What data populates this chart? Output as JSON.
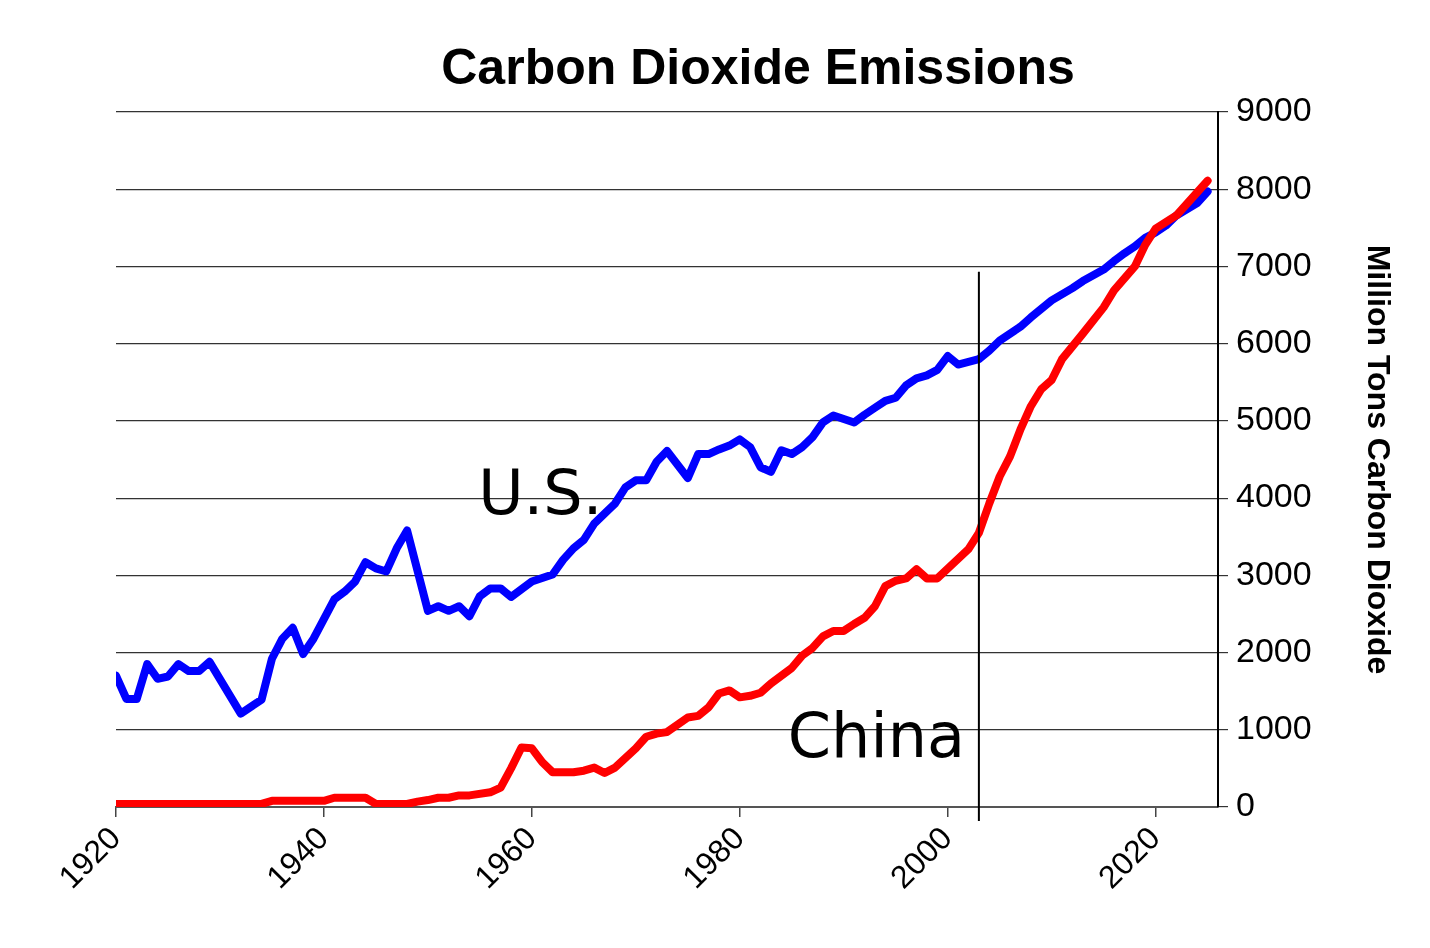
{
  "chart_data": {
    "type": "line",
    "title": "Carbon Dioxide Emissions",
    "ylabel": "Million Tons Carbon Dioxide",
    "xlim": [
      1920,
      2026
    ],
    "xticks": [
      1920,
      1940,
      1960,
      1980,
      2000,
      2020
    ],
    "ylim": [
      0,
      9000
    ],
    "yticks": [
      0,
      1000,
      2000,
      3000,
      4000,
      5000,
      6000,
      7000,
      8000,
      9000
    ],
    "grid": "y",
    "legend": false,
    "marker": "none",
    "line_style": "solid",
    "ref_lines": [
      {
        "axis": "x",
        "value": 2003,
        "color": "#000000"
      }
    ],
    "series": [
      {
        "name": "U.S.",
        "color": "#0000ff",
        "x": [
          1920,
          1921,
          1922,
          1923,
          1924,
          1925,
          1926,
          1927,
          1928,
          1929,
          1932,
          1934,
          1935,
          1936,
          1937,
          1938,
          1939,
          1941,
          1942,
          1943,
          1944,
          1945,
          1946,
          1947,
          1948,
          1950,
          1951,
          1952,
          1953,
          1954,
          1955,
          1956,
          1957,
          1958,
          1959,
          1960,
          1962,
          1963,
          1964,
          1965,
          1966,
          1968,
          1969,
          1970,
          1971,
          1972,
          1973,
          1975,
          1976,
          1977,
          1978,
          1979,
          1980,
          1981,
          1982,
          1983,
          1984,
          1985,
          1986,
          1987,
          1988,
          1989,
          1991,
          1992,
          1993,
          1994,
          1995,
          1996,
          1997,
          1998,
          1999,
          2000,
          2001,
          2003,
          2004,
          2005,
          2007,
          2008,
          2010,
          2012,
          2013,
          2015,
          2016,
          2017,
          2018,
          2019,
          2020,
          2021,
          2022,
          2024,
          2025
        ],
        "values": [
          1700,
          1400,
          1400,
          1850,
          1660,
          1690,
          1850,
          1760,
          1760,
          1880,
          1210,
          1390,
          1920,
          2180,
          2320,
          1980,
          2180,
          2690,
          2790,
          2920,
          3170,
          3090,
          3050,
          3350,
          3580,
          2540,
          2600,
          2540,
          2600,
          2470,
          2730,
          2830,
          2830,
          2720,
          2820,
          2920,
          3010,
          3200,
          3350,
          3460,
          3670,
          3930,
          4140,
          4230,
          4230,
          4470,
          4610,
          4260,
          4570,
          4570,
          4630,
          4680,
          4760,
          4660,
          4400,
          4340,
          4620,
          4570,
          4660,
          4790,
          4980,
          5070,
          4980,
          5080,
          5170,
          5260,
          5300,
          5460,
          5550,
          5590,
          5660,
          5840,
          5730,
          5800,
          5910,
          6040,
          6220,
          6340,
          6560,
          6720,
          6810,
          6960,
          7070,
          7170,
          7260,
          7370,
          7440,
          7530,
          7660,
          7820,
          7970
        ]
      },
      {
        "name": "China",
        "color": "#ff0000",
        "x": [
          1920,
          1934,
          1935,
          1940,
          1941,
          1944,
          1945,
          1948,
          1949,
          1950,
          1951,
          1952,
          1953,
          1954,
          1956,
          1957,
          1958,
          1959,
          1960,
          1961,
          1962,
          1964,
          1965,
          1966,
          1967,
          1968,
          1970,
          1971,
          1972,
          1973,
          1975,
          1976,
          1977,
          1978,
          1979,
          1980,
          1981,
          1982,
          1983,
          1984,
          1985,
          1986,
          1987,
          1988,
          1989,
          1990,
          1991,
          1992,
          1993,
          1994,
          1995,
          1996,
          1997,
          1998,
          1999,
          2002,
          2003,
          2004,
          2005,
          2006,
          2007,
          2008,
          2009,
          2010,
          2011,
          2013,
          2015,
          2016,
          2018,
          2019,
          2020,
          2022,
          2025
        ],
        "values": [
          40,
          40,
          80,
          80,
          120,
          120,
          40,
          40,
          70,
          90,
          120,
          120,
          150,
          150,
          190,
          250,
          500,
          770,
          760,
          580,
          450,
          450,
          470,
          510,
          440,
          510,
          760,
          910,
          950,
          970,
          1160,
          1180,
          1290,
          1470,
          1510,
          1420,
          1440,
          1480,
          1600,
          1700,
          1800,
          1960,
          2060,
          2210,
          2280,
          2280,
          2370,
          2450,
          2600,
          2860,
          2930,
          2960,
          3080,
          2960,
          2960,
          3340,
          3550,
          3930,
          4280,
          4540,
          4890,
          5190,
          5410,
          5530,
          5800,
          6130,
          6470,
          6690,
          7000,
          7280,
          7490,
          7660,
          8110
        ]
      }
    ]
  }
}
